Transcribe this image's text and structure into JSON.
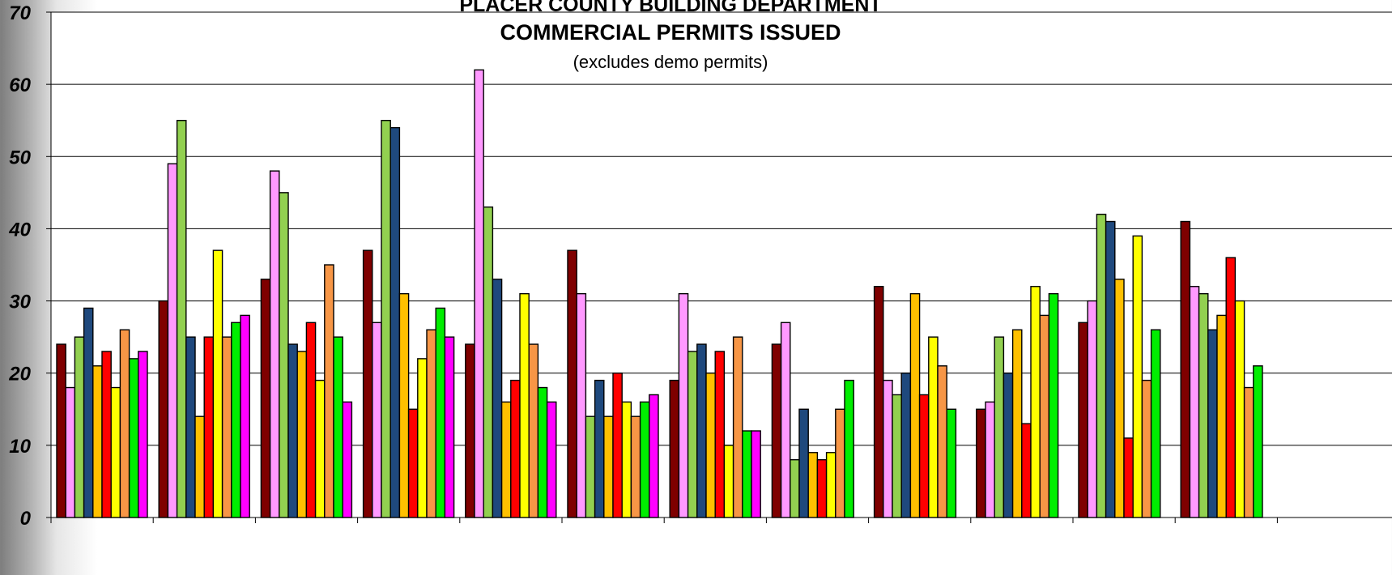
{
  "chart_data": {
    "type": "bar",
    "title": "PLACER COUNTY BUILDING DEPARTMENT",
    "subtitle": "COMMERCIAL PERMITS ISSUED",
    "note": "(excludes demo permits)",
    "xlabel": "",
    "ylabel": "",
    "ylim": [
      0,
      70
    ],
    "yticks": [
      0,
      10,
      20,
      30,
      40,
      50,
      60,
      70
    ],
    "grid": true,
    "categories": [
      "",
      "",
      "",
      "",
      "",
      "",
      "",
      "",
      "",
      "",
      "",
      ""
    ],
    "series": [
      {
        "color": "#7f0000",
        "values": [
          24,
          30,
          33,
          37,
          24,
          37,
          19,
          24,
          32,
          15,
          27,
          41
        ]
      },
      {
        "color": "#ff99ff",
        "values": [
          18,
          49,
          48,
          27,
          62,
          31,
          31,
          27,
          19,
          16,
          30,
          32
        ]
      },
      {
        "color": "#92d050",
        "values": [
          25,
          55,
          45,
          55,
          43,
          14,
          23,
          8,
          17,
          25,
          42,
          31
        ]
      },
      {
        "color": "#1f497d",
        "values": [
          29,
          25,
          24,
          54,
          33,
          19,
          24,
          15,
          20,
          20,
          41,
          26
        ]
      },
      {
        "color": "#ffc000",
        "values": [
          21,
          14,
          23,
          31,
          16,
          14,
          20,
          9,
          31,
          26,
          33,
          28
        ]
      },
      {
        "color": "#ff0000",
        "values": [
          23,
          25,
          27,
          15,
          19,
          20,
          23,
          8,
          17,
          13,
          11,
          36
        ]
      },
      {
        "color": "#ffff00",
        "values": [
          18,
          37,
          19,
          22,
          31,
          16,
          10,
          9,
          25,
          32,
          39,
          30
        ]
      },
      {
        "color": "#f79646",
        "values": [
          26,
          25,
          35,
          26,
          24,
          14,
          25,
          15,
          21,
          28,
          19,
          18
        ]
      },
      {
        "color": "#00ee00",
        "values": [
          22,
          27,
          25,
          29,
          18,
          16,
          12,
          19,
          15,
          31,
          26,
          21
        ]
      },
      {
        "color": "#ff00ff",
        "values": [
          23,
          28,
          16,
          25,
          16,
          17,
          12,
          null,
          null,
          null,
          null,
          null
        ]
      }
    ]
  }
}
